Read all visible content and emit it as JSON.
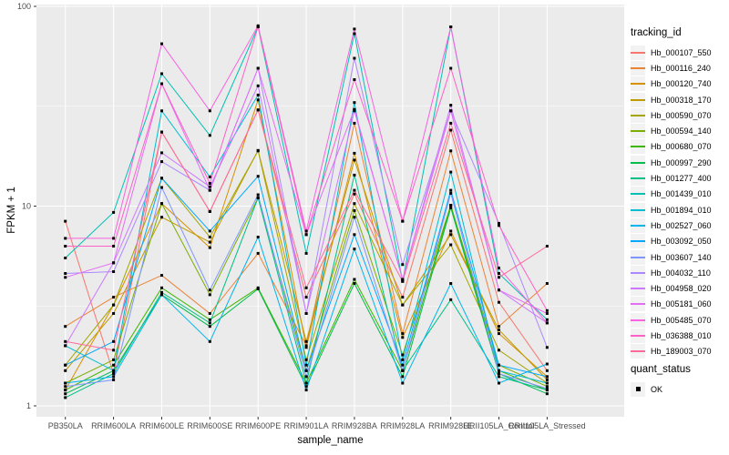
{
  "figure": {
    "background": "#FFFFFF",
    "panel_bg": "#EBEBEB",
    "grid_color": "#FFFFFF",
    "axis_text_color": "#4D4D4D",
    "tick_color": "#333333",
    "point_color": "#000000",
    "legend_key_bg": "#F2F2F2"
  },
  "legend": {
    "tracking_title": "tracking_id",
    "quant_title": "quant_status",
    "quant_items": [
      {
        "label": "OK",
        "glyph": "black-square"
      }
    ]
  },
  "chart_data": {
    "type": "line",
    "title": "",
    "xlabel": "sample_name",
    "ylabel": "FPKM + 1",
    "y_scale": "log10",
    "y_ticks": [
      1,
      10,
      100
    ],
    "y_minor_ticks": [
      3.1623,
      31.623
    ],
    "ylim": [
      0.9,
      105
    ],
    "grid": true,
    "legend_position": "right",
    "point_marker": "small black square (quant_status = OK at every point)",
    "categories": [
      "PB350LA",
      "RRIM600LA",
      "RRIM600LE",
      "RRIM600SE",
      "RRIM600PE",
      "RRIM901LA",
      "RRIM928BA",
      "RRIM928LA",
      "RRIM928LE",
      "RRII105LA_Control",
      "RRII105LA_Stressed"
    ],
    "series": [
      {
        "name": "Hb_000107_550",
        "color": "#F8766D",
        "values": [
          8.4,
          1.45,
          23.5,
          9.4,
          30.3,
          3.5,
          11.5,
          3.5,
          24,
          3.3,
          1.5
        ]
      },
      {
        "name": "Hb_000116_240",
        "color": "#EB8335",
        "values": [
          2.5,
          3.5,
          4.5,
          2.9,
          5.8,
          2.0,
          26,
          2.3,
          18.9,
          2.5,
          4.1
        ]
      },
      {
        "name": "Hb_000120_740",
        "color": "#D89000",
        "values": [
          1.2,
          3.2,
          10.3,
          6.2,
          34,
          1.96,
          18.4,
          2.2,
          7.5,
          2.3,
          1.4
        ]
      },
      {
        "name": "Hb_000318_170",
        "color": "#C09B00",
        "values": [
          1.5,
          2.9,
          8.8,
          6.6,
          19,
          2.1,
          17,
          3.2,
          7.2,
          2.4,
          1.35
        ]
      },
      {
        "name": "Hb_000590_070",
        "color": "#A3A500",
        "values": [
          1.6,
          3.2,
          13.8,
          7.0,
          18.9,
          1.7,
          10.3,
          3.2,
          6.4,
          1.9,
          1.3
        ]
      },
      {
        "name": "Hb_000594_140",
        "color": "#7CAE00",
        "values": [
          1.3,
          1.7,
          10.3,
          3.6,
          11,
          1.5,
          9.5,
          1.8,
          10.1,
          1.6,
          1.25
        ]
      },
      {
        "name": "Hb_000680_070",
        "color": "#3DB600",
        "values": [
          1.2,
          1.6,
          3.9,
          2.7,
          3.9,
          1.3,
          4.3,
          1.5,
          10.1,
          1.5,
          1.2
        ]
      },
      {
        "name": "Hb_000997_290",
        "color": "#00BB4E",
        "values": [
          1.15,
          1.5,
          3.6,
          2.5,
          3.85,
          1.25,
          4.1,
          1.4,
          9.8,
          1.45,
          1.15
        ]
      },
      {
        "name": "Hb_001277_400",
        "color": "#00C087",
        "values": [
          1.1,
          1.45,
          3.7,
          2.6,
          11,
          1.3,
          14.3,
          1.5,
          3.4,
          1.4,
          1.2
        ]
      },
      {
        "name": "Hb_001439_010",
        "color": "#00C0B4",
        "values": [
          5.5,
          9.3,
          46,
          22.6,
          79,
          5.8,
          73,
          4.2,
          79,
          4.6,
          2.7
        ]
      },
      {
        "name": "Hb_001894_010",
        "color": "#00BDD2",
        "values": [
          2.0,
          1.5,
          30,
          14,
          36,
          1.6,
          33,
          1.7,
          14.8,
          1.5,
          1.3
        ]
      },
      {
        "name": "Hb_002527_060",
        "color": "#00B5EC",
        "values": [
          1.3,
          1.4,
          3.6,
          2.1,
          7.0,
          1.2,
          6.1,
          1.3,
          4.1,
          1.3,
          1.62
        ]
      },
      {
        "name": "Hb_003092_050",
        "color": "#00A9FF",
        "values": [
          1.6,
          2.1,
          13.8,
          7.5,
          14.1,
          1.5,
          7.2,
          1.6,
          12,
          1.6,
          1.4
        ]
      },
      {
        "name": "Hb_003607_140",
        "color": "#7F96FF",
        "values": [
          1.25,
          1.35,
          12.4,
          3.8,
          11.4,
          1.4,
          8.8,
          1.5,
          11.6,
          1.45,
          1.22
        ]
      },
      {
        "name": "Hb_004032_110",
        "color": "#AC88FF",
        "values": [
          4.6,
          4.7,
          16.7,
          12,
          49,
          2.9,
          55,
          5.1,
          30,
          8.2,
          1.96
        ]
      },
      {
        "name": "Hb_004958_020",
        "color": "#CD79FF",
        "values": [
          2.0,
          5.2,
          18.5,
          12.5,
          40,
          2.9,
          30,
          4.3,
          32,
          3.8,
          2.6
        ]
      },
      {
        "name": "Hb_005181_060",
        "color": "#E56DF5",
        "values": [
          4.4,
          5.2,
          41,
          12,
          49,
          7.2,
          30.5,
          4.3,
          30,
          3.8,
          2.9
        ]
      },
      {
        "name": "Hb_005485_070",
        "color": "#F763E0",
        "values": [
          6.9,
          6.9,
          65,
          30,
          80,
          7.5,
          77,
          8.4,
          79,
          4.9,
          2.6
        ]
      },
      {
        "name": "Hb_036388_010",
        "color": "#FF61C7",
        "values": [
          6.3,
          6.3,
          41,
          13,
          79,
          7.2,
          43,
          8.4,
          49,
          8.0,
          3.0
        ]
      },
      {
        "name": "Hb_189003_070",
        "color": "#FF6A99",
        "values": [
          2.1,
          1.9,
          23.5,
          9.4,
          30.3,
          3.9,
          12,
          4.2,
          26,
          4.4,
          6.3
        ]
      }
    ]
  }
}
